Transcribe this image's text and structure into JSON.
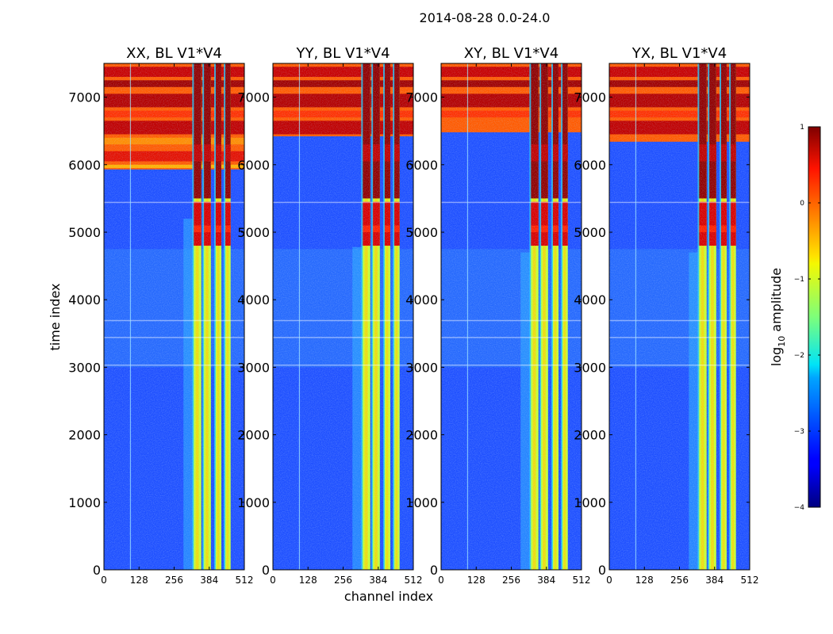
{
  "figure_title": "2014-08-28 0.0-24.0",
  "chart_data": {
    "type": "heatmap",
    "suptitle": "2014-08-28 0.0-24.0",
    "xlabel": "channel index",
    "ylabel": "time index",
    "xlim": [
      0,
      512
    ],
    "ylim": [
      0,
      7500
    ],
    "xticks": [
      0,
      128,
      256,
      384,
      512
    ],
    "yticks": [
      0,
      1000,
      2000,
      3000,
      4000,
      5000,
      6000,
      7000
    ],
    "panels": [
      {
        "title": "XX, BL V1*V4",
        "hot_start": 5930,
        "shoulder": 5200
      },
      {
        "title": "YY, BL V1*V4",
        "hot_start": 6420,
        "shoulder": 4780
      },
      {
        "title": "XY, BL V1*V4",
        "hot_start": 6480,
        "shoulder": 4700
      },
      {
        "title": "YX, BL V1*V4",
        "hot_start": 6340,
        "shoulder": 4700
      }
    ],
    "bright_channel_bands": [
      [
        325,
        355
      ],
      [
        362,
        390
      ],
      [
        405,
        428
      ],
      [
        440,
        462
      ]
    ],
    "colorbar": {
      "label": "log10 amplitude",
      "label_base": "log",
      "label_sub": "10",
      "label_rest": " amplitude",
      "range": [
        -4,
        1
      ],
      "ticks": [
        {
          "value": 1,
          "label": "1"
        },
        {
          "value": 0,
          "label": "0"
        },
        {
          "value": -1,
          "label": "−1"
        },
        {
          "value": -2,
          "label": "−2"
        },
        {
          "value": -3,
          "label": "−3"
        },
        {
          "value": -4,
          "label": "−4"
        }
      ],
      "colormap": "jet"
    }
  }
}
